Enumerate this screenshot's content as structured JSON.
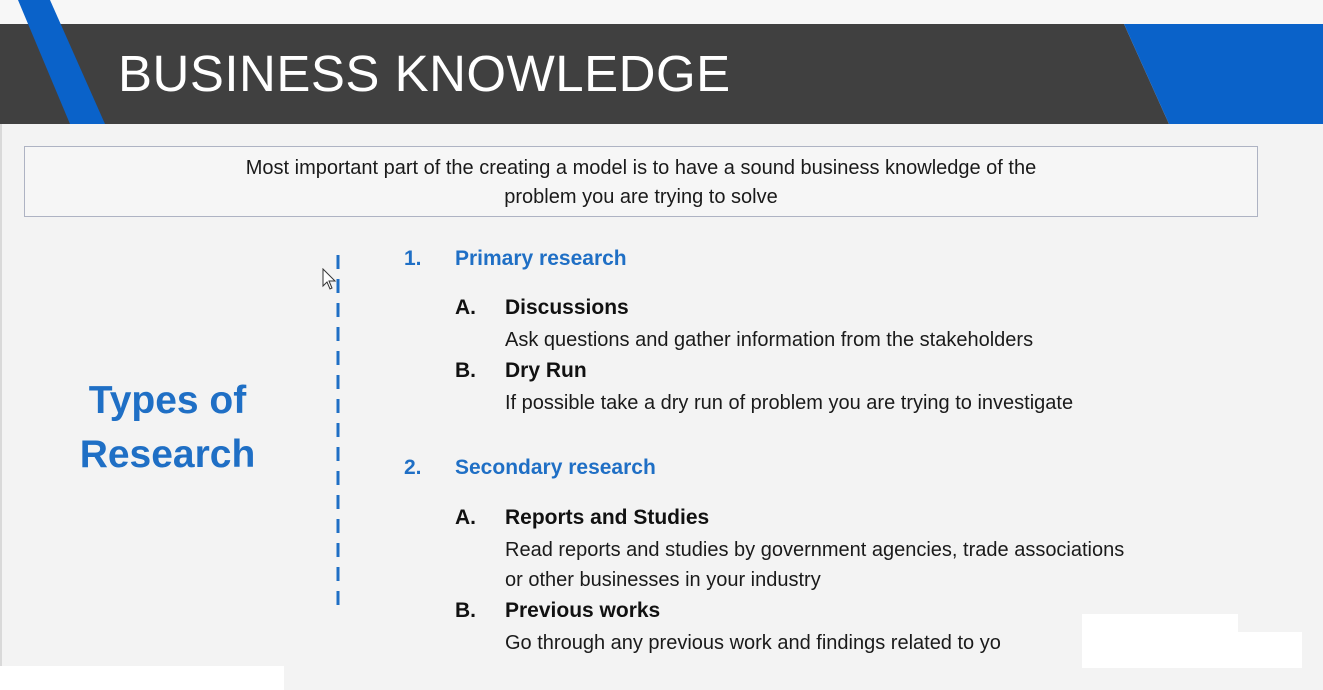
{
  "slide": {
    "title": "BUSINESS KNOWLEDGE",
    "intro": {
      "line1": "Most important part of the creating a model is to have a sound business knowledge of the",
      "line2": "problem you are trying to solve"
    },
    "side_heading": {
      "line1": "Types of",
      "line2": "Research"
    },
    "sections": [
      {
        "number": "1.",
        "title": "Primary research",
        "items": [
          {
            "letter": "A.",
            "title": "Discussions",
            "description": [
              "Ask questions and gather information from the stakeholders"
            ]
          },
          {
            "letter": "B.",
            "title": "Dry Run",
            "description": [
              "If possible take a dry run of problem you are trying to investigate"
            ]
          }
        ]
      },
      {
        "number": "2.",
        "title": "Secondary research",
        "items": [
          {
            "letter": "A.",
            "title": "Reports and Studies",
            "description": [
              "Read reports and studies by government agencies, trade associations",
              "or other businesses in your industry"
            ]
          },
          {
            "letter": "B.",
            "title": "Previous works",
            "description": [
              "Go through any previous work and findings related to yo"
            ]
          }
        ]
      }
    ]
  },
  "colors": {
    "header_dark": "#404040",
    "accent_blue": "#0a62c9",
    "heading_blue": "#1f6fc5",
    "background": "#f3f3f3"
  },
  "icons": {
    "cursor": "mouse-pointer-icon"
  }
}
